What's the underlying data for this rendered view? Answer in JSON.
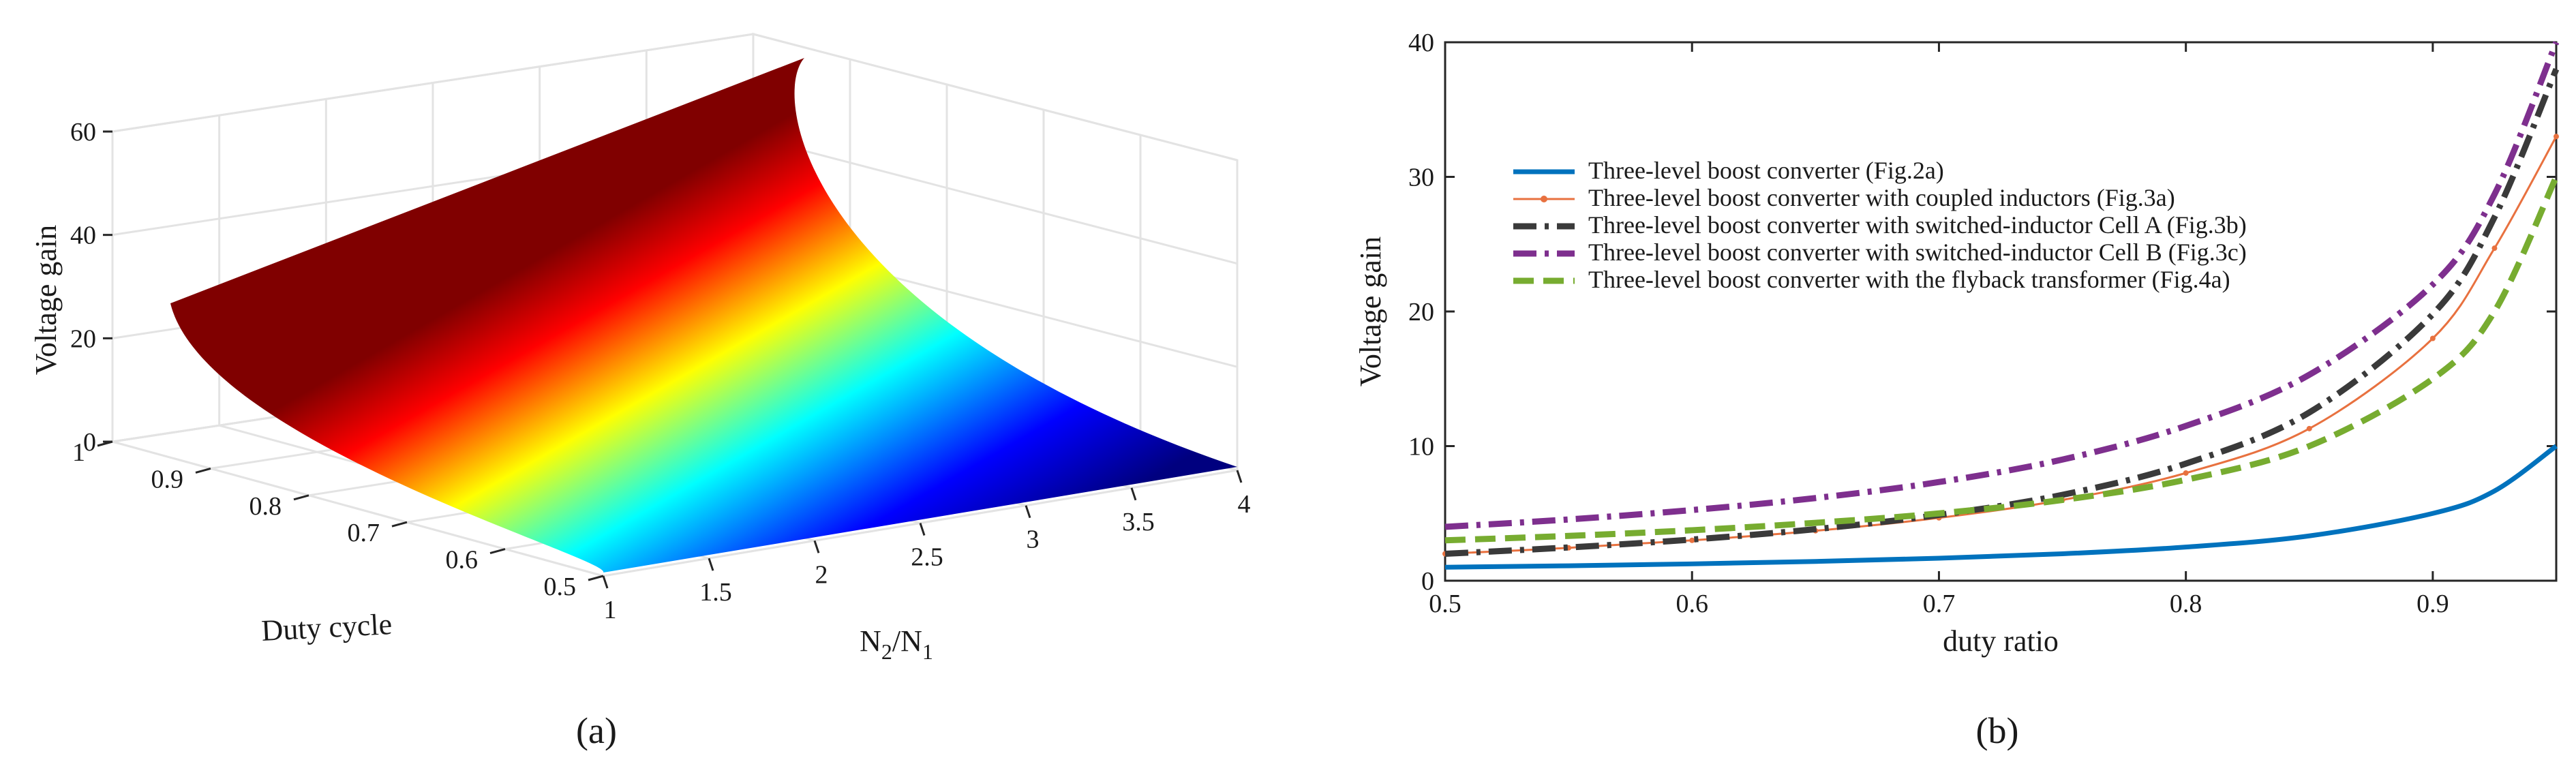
{
  "chart_data": [
    {
      "type": "surface3d",
      "title": "",
      "panel_label": "(a)",
      "xlabel": "Duty cycle",
      "ylabel_base": "N",
      "ylabel_sub_num": "2",
      "ylabel_sep": "/N",
      "ylabel_sub_den": "1",
      "zlabel": "Voltage gain",
      "x_ticks": [
        "1",
        "0.9",
        "0.8",
        "0.7",
        "0.6",
        "0.5"
      ],
      "x_tick_values": [
        1,
        0.9,
        0.8,
        0.7,
        0.6,
        0.5
      ],
      "y_ticks": [
        "1",
        "1.5",
        "2",
        "2.5",
        "3",
        "3.5",
        "4"
      ],
      "y_tick_values": [
        1,
        1.5,
        2,
        2.5,
        3,
        3.5,
        4
      ],
      "z_ticks": [
        "0",
        "20",
        "40",
        "60"
      ],
      "z_tick_values": [
        0,
        20,
        40,
        60
      ],
      "xlim": [
        0.5,
        1
      ],
      "ylim": [
        1,
        4
      ],
      "zlim": [
        0,
        60
      ],
      "corner_values": [
        {
          "duty": 0.5,
          "ratio": 1,
          "gain": 1
        },
        {
          "duty": 0.5,
          "ratio": 4,
          "gain": 1
        },
        {
          "duty": 0.95,
          "ratio": 1,
          "gain": 25
        },
        {
          "duty": 0.95,
          "ratio": 4,
          "gain": 62
        }
      ],
      "colormap": [
        "#00008f",
        "#0000ff",
        "#00ffff",
        "#ffff00",
        "#ff0000",
        "#800000"
      ]
    },
    {
      "type": "line",
      "title": "",
      "panel_label": "(b)",
      "xlabel": "duty ratio",
      "ylabel": "Voltage gain",
      "xlim": [
        0.5,
        0.95
      ],
      "ylim": [
        0,
        40
      ],
      "x_ticks": [
        "0.5",
        "0.6",
        "0.7",
        "0.8",
        "0.9"
      ],
      "x_tick_values": [
        0.5,
        0.6,
        0.7,
        0.8,
        0.9
      ],
      "y_ticks": [
        "0",
        "10",
        "20",
        "30",
        "40"
      ],
      "y_tick_values": [
        0,
        10,
        20,
        30,
        40
      ],
      "x": [
        0.5,
        0.55,
        0.6,
        0.65,
        0.7,
        0.75,
        0.8,
        0.85,
        0.9,
        0.925,
        0.95
      ],
      "series": [
        {
          "name": "Three-level boost converter (Fig.2a)",
          "color": "#0072bd",
          "style": "solid",
          "width": 7,
          "values": [
            1.0,
            1.11,
            1.25,
            1.43,
            1.67,
            2.0,
            2.5,
            3.33,
            5.0,
            6.67,
            10.0
          ]
        },
        {
          "name": "Three-level boost converter with coupled inductors (Fig.3a)",
          "color": "#e8713f",
          "style": "thin-marker",
          "width": 3,
          "values": [
            2.0,
            2.44,
            3.0,
            3.71,
            4.67,
            6.0,
            8.0,
            11.3,
            18.0,
            24.7,
            33.0
          ]
        },
        {
          "name": "Three-level boost converter with switched-inductor Cell A (Fig.3b)",
          "color": "#3a3a3a",
          "style": "dashdot",
          "width": 9,
          "values": [
            2.0,
            2.47,
            3.06,
            3.83,
            4.89,
            6.38,
            8.7,
            12.5,
            19.8,
            27.0,
            38.0
          ]
        },
        {
          "name": "Three-level boost converter with switched-inductor Cell B (Fig.3c)",
          "color": "#7e2f8e",
          "style": "dashdot",
          "width": 9,
          "values": [
            4.0,
            4.55,
            5.25,
            6.14,
            7.33,
            9.0,
            11.5,
            15.3,
            22.0,
            28.7,
            40.0
          ]
        },
        {
          "name": "Three-level boost converter with the flyback transformer (Fig.4a)",
          "color": "#77ac30",
          "style": "dash",
          "width": 9,
          "values": [
            3.0,
            3.33,
            3.75,
            4.3,
            5.0,
            6.0,
            7.5,
            10.0,
            15.0,
            20.0,
            30.0
          ]
        }
      ],
      "legend_position": "top-left"
    }
  ]
}
